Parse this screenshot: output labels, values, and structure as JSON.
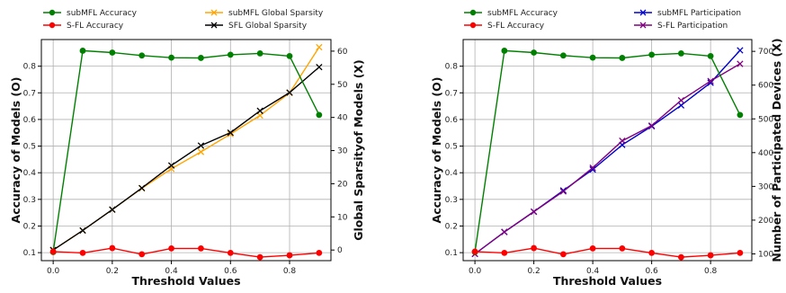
{
  "chart_data": [
    {
      "type": "line",
      "x": [
        0.0,
        0.1,
        0.2,
        0.3,
        0.4,
        0.5,
        0.6,
        0.7,
        0.8,
        0.9
      ],
      "xlabel": "Threshold Values",
      "ylabel": "Accuracy of Models (O)",
      "y2label": "Global Sparsityof Models (X)",
      "xlim": [
        -0.04,
        0.94
      ],
      "ylim": [
        0.07,
        0.9
      ],
      "y2lim": [
        -3.2,
        63.5
      ],
      "xticks": [
        "0.0",
        "0.2",
        "0.4",
        "0.6",
        "0.8"
      ],
      "yticks": [
        "0.1",
        "0.2",
        "0.3",
        "0.4",
        "0.5",
        "0.6",
        "0.7",
        "0.8"
      ],
      "y2ticks": [
        "0",
        "10",
        "20",
        "30",
        "40",
        "50",
        "60"
      ],
      "grid": true,
      "series": [
        {
          "name": "subMFL Accuracy",
          "axis": "left",
          "marker": "o",
          "color": "#008000",
          "values": [
            0.102,
            0.858,
            0.851,
            0.84,
            0.832,
            0.831,
            0.843,
            0.848,
            0.838,
            0.617
          ]
        },
        {
          "name": "S-FL Accuracy",
          "axis": "left",
          "marker": "o",
          "color": "#ff0000",
          "values": [
            0.104,
            0.099,
            0.117,
            0.094,
            0.116,
            0.116,
            0.099,
            0.083,
            0.09,
            0.099
          ]
        },
        {
          "name": "subMFL Global Sparsity",
          "axis": "right",
          "marker": "x",
          "color": "#ffa500",
          "values": [
            0.0,
            5.9,
            12.2,
            18.6,
            24.5,
            29.6,
            35.0,
            40.6,
            47.4,
            61.2
          ]
        },
        {
          "name": "SFL Global Sparsity",
          "axis": "right",
          "marker": "x",
          "color": "#000000",
          "values": [
            0.0,
            5.9,
            12.2,
            18.7,
            25.5,
            31.5,
            35.4,
            42.0,
            47.5,
            55.2
          ]
        }
      ],
      "legends": [
        {
          "position": "top-left",
          "entries": [
            "subMFL Accuracy",
            "S-FL Accuracy"
          ]
        },
        {
          "position": "top-right",
          "entries": [
            "subMFL Global Sparsity",
            "SFL Global Sparsity"
          ]
        }
      ]
    },
    {
      "type": "line",
      "x": [
        0.0,
        0.1,
        0.2,
        0.3,
        0.4,
        0.5,
        0.6,
        0.7,
        0.8,
        0.9
      ],
      "xlabel": "Threshold Values",
      "ylabel": "Accuracy of Models (O)",
      "y2label": "Number of Participated Devices (X)",
      "xlim": [
        -0.04,
        0.94
      ],
      "ylim": [
        0.07,
        0.9
      ],
      "y2lim": [
        80,
        735
      ],
      "xticks": [
        "0.0",
        "0.2",
        "0.4",
        "0.6",
        "0.8"
      ],
      "yticks": [
        "0.1",
        "0.2",
        "0.3",
        "0.4",
        "0.5",
        "0.6",
        "0.7",
        "0.8"
      ],
      "y2ticks": [
        "100",
        "200",
        "300",
        "400",
        "500",
        "600",
        "700"
      ],
      "grid": true,
      "series": [
        {
          "name": "subMFL Accuracy",
          "axis": "left",
          "marker": "o",
          "color": "#008000",
          "values": [
            0.102,
            0.858,
            0.851,
            0.84,
            0.832,
            0.831,
            0.843,
            0.848,
            0.838,
            0.617
          ]
        },
        {
          "name": "S-FL Accuracy",
          "axis": "left",
          "marker": "o",
          "color": "#ff0000",
          "values": [
            0.104,
            0.099,
            0.117,
            0.094,
            0.116,
            0.116,
            0.099,
            0.083,
            0.09,
            0.099
          ]
        },
        {
          "name": "subMFL Participation",
          "axis": "right",
          "marker": "x",
          "color": "#0000cd",
          "values": [
            100,
            165,
            225,
            288,
            350,
            423,
            478,
            540,
            607,
            703
          ]
        },
        {
          "name": "S-FL Participation",
          "axis": "right",
          "marker": "x",
          "color": "#800080",
          "values": [
            100,
            165,
            225,
            285,
            355,
            435,
            480,
            555,
            612,
            663
          ]
        }
      ],
      "legends": [
        {
          "position": "top-left",
          "entries": [
            "subMFL Accuracy",
            "S-FL Accuracy"
          ]
        },
        {
          "position": "top-right",
          "entries": [
            "subMFL Participation",
            "S-FL Participation"
          ]
        }
      ]
    }
  ]
}
